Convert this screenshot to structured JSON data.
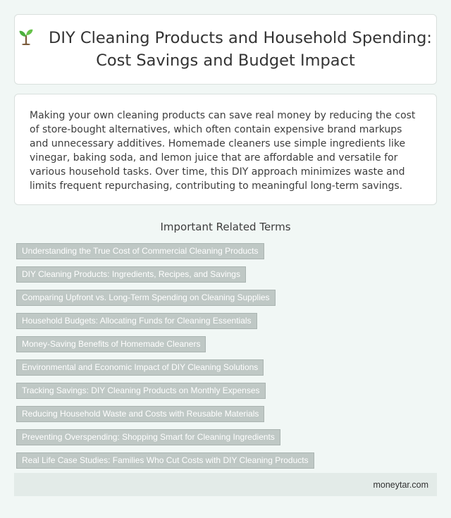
{
  "title": {
    "icon": "sprout-icon",
    "text": "DIY Cleaning Products and Household Spending: Cost Savings and Budget Impact"
  },
  "intro": {
    "text": "Making your own cleaning products can save real money by reducing the cost of store-bought alternatives, which often contain expensive brand markups and unnecessary additives. Homemade cleaners use simple ingredients like vinegar, baking soda, and lemon juice that are affordable and versatile for various household tasks. Over time, this DIY approach minimizes waste and limits frequent repurchasing, contributing to meaningful long-term savings."
  },
  "related": {
    "heading": "Important Related Terms",
    "terms": [
      "Understanding the True Cost of Commercial Cleaning Products",
      "DIY Cleaning Products: Ingredients, Recipes, and Savings",
      "Comparing Upfront vs. Long-Term Spending on Cleaning Supplies",
      "Household Budgets: Allocating Funds for Cleaning Essentials",
      "Money-Saving Benefits of Homemade Cleaners",
      "Environmental and Economic Impact of DIY Cleaning Solutions",
      "Tracking Savings: DIY Cleaning Products on Monthly Expenses",
      "Reducing Household Waste and Costs with Reusable Materials",
      "Preventing Overspending: Shopping Smart for Cleaning Ingredients",
      "Real Life Case Studies: Families Who Cut Costs with DIY Cleaning Products"
    ]
  },
  "footer": {
    "site": "moneytar.com"
  },
  "colors": {
    "page_background": "#f1f7f5",
    "card_background": "#ffffff",
    "tag_background": "#bfc8c5",
    "footer_background": "#e3ebe8"
  }
}
